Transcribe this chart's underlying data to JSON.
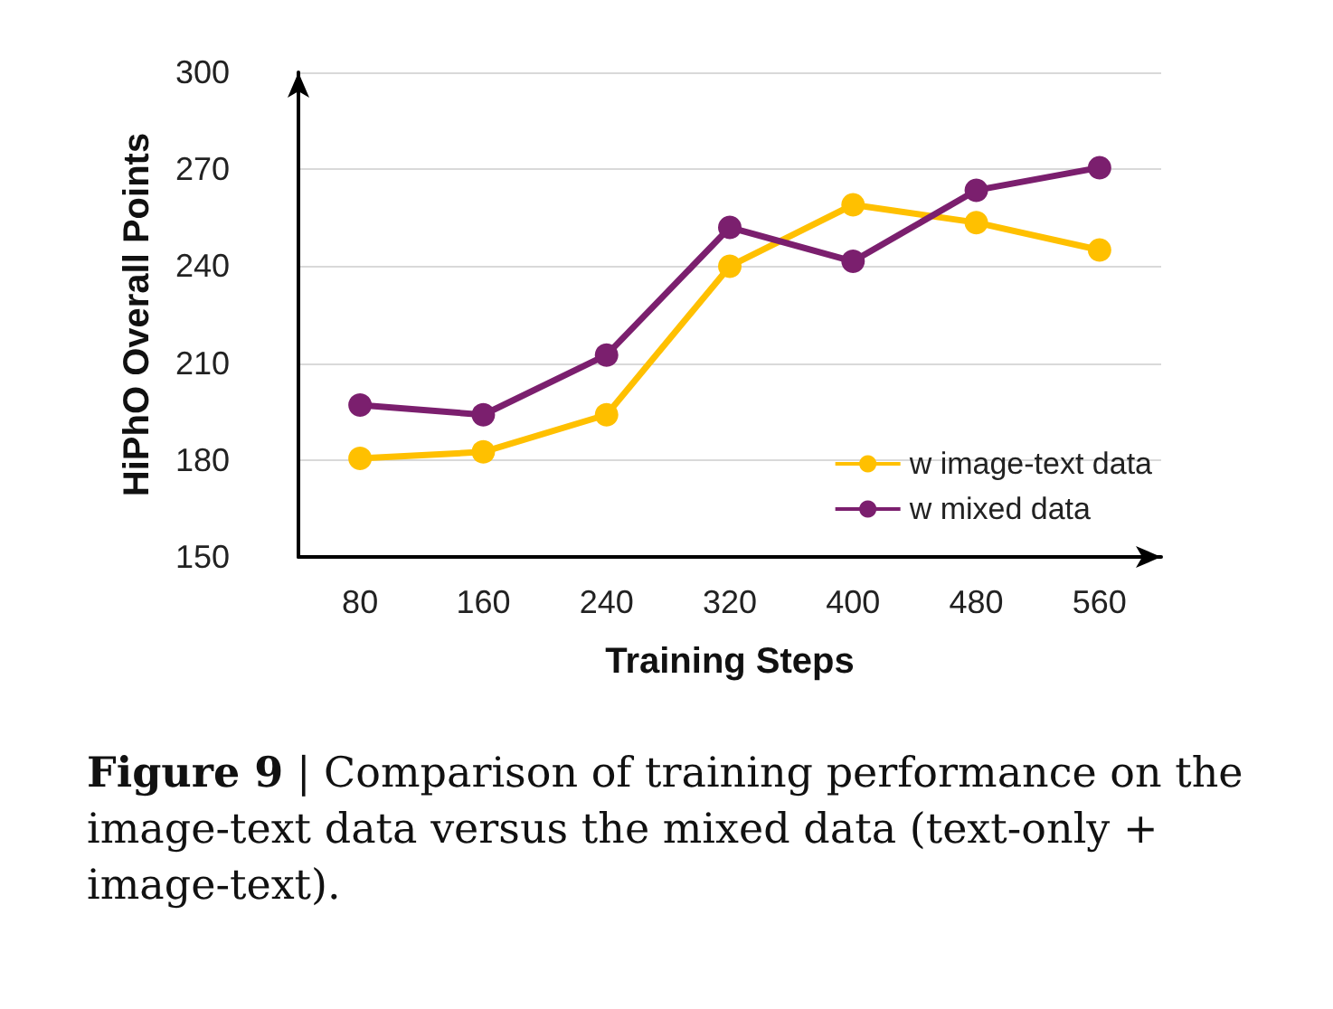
{
  "chart_data": {
    "type": "line",
    "xlabel": "Training Steps",
    "ylabel": "HiPhO Overall Points",
    "categories": [
      "80",
      "160",
      "240",
      "320",
      "400",
      "480",
      "560"
    ],
    "series": [
      {
        "name": "w image-text data",
        "color": "#ffc000",
        "values": [
          180.5,
          182.5,
          194,
          240,
          259,
          253.5,
          245
        ]
      },
      {
        "name": "w mixed data",
        "color": "#7b1f6e",
        "values": [
          197,
          194,
          212.5,
          252,
          241.5,
          263.5,
          270.5
        ]
      }
    ],
    "ylim": [
      150,
      300
    ],
    "yticks": [
      150,
      180,
      210,
      240,
      270,
      300
    ],
    "grid": "y",
    "legend": "bottom right",
    "marker": "circle",
    "line_style": "solid",
    "annotations": [
      "Figure 9 | Comparison of training performance on the image-text data versus the mixed data (text-only + image-text)."
    ]
  }
}
